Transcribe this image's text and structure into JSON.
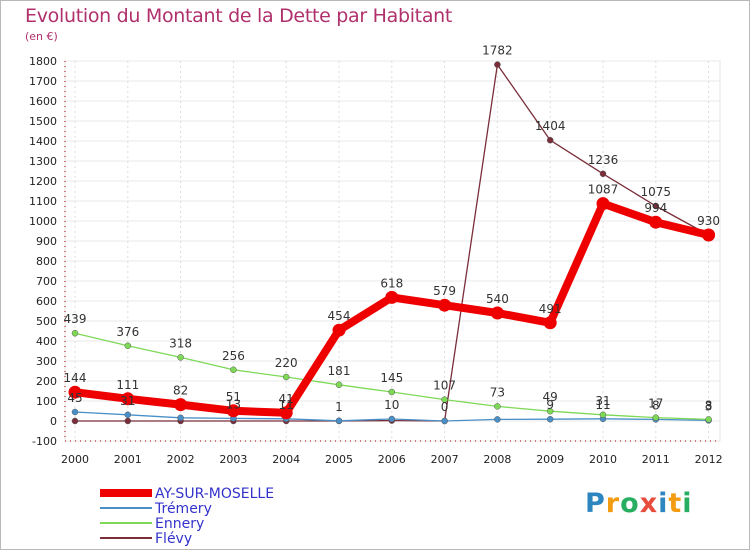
{
  "chart_data": {
    "type": "line",
    "title": "Evolution du Montant de la Dette par Habitant",
    "ylabel": "(en €)",
    "xlabel": "",
    "ylim": [
      -100,
      1800
    ],
    "yticks": [
      -100,
      0,
      100,
      200,
      300,
      400,
      500,
      600,
      700,
      800,
      900,
      1000,
      1100,
      1200,
      1300,
      1400,
      1500,
      1600,
      1700,
      1800
    ],
    "x": [
      "2000",
      "2001",
      "2002",
      "2003",
      "2004",
      "2005",
      "2006",
      "2007",
      "2008",
      "2009",
      "2010",
      "2011",
      "2012"
    ],
    "series": [
      {
        "name": "Flévy",
        "color": "#7a2e3a",
        "values": [
          0,
          0,
          0,
          0,
          0,
          0,
          2,
          0,
          1782,
          1404,
          1236,
          1075,
          930
        ],
        "labels": [
          "",
          "",
          "",
          "",
          "",
          "",
          "",
          "",
          "1782",
          "1404",
          "1236",
          "1075",
          ""
        ]
      },
      {
        "name": "Trémery",
        "color": "#4a90c8",
        "values": [
          45,
          31,
          16,
          13,
          11,
          1,
          10,
          0,
          8,
          9,
          11,
          8,
          3
        ],
        "labels": [
          "45",
          "31",
          "",
          "13",
          "11",
          "1",
          "10",
          "0",
          "",
          "9",
          "11",
          "8",
          "3"
        ]
      },
      {
        "name": "Ennery",
        "color": "#7ed957",
        "values": [
          439,
          376,
          318,
          256,
          220,
          181,
          145,
          107,
          73,
          49,
          31,
          17,
          8
        ],
        "labels": [
          "439",
          "376",
          "318",
          "256",
          "220",
          "181",
          "145",
          "107",
          "73",
          "49",
          "31",
          "17",
          "8"
        ]
      },
      {
        "name": "AY-SUR-MOSELLE",
        "color": "#ee0000",
        "values": [
          144,
          111,
          82,
          51,
          41,
          454,
          618,
          579,
          540,
          491,
          1087,
          994,
          930
        ],
        "labels": [
          "144",
          "111",
          "82",
          "51",
          "41",
          "454",
          "618",
          "579",
          "540",
          "491",
          "1087",
          "994",
          "930"
        ]
      }
    ]
  },
  "legend": {
    "items": [
      {
        "name": "AY-SUR-MOSELLE",
        "color": "#ee0000"
      },
      {
        "name": "Trémery",
        "color": "#4a90c8"
      },
      {
        "name": "Ennery",
        "color": "#7ed957"
      },
      {
        "name": "Flévy",
        "color": "#7a2e3a"
      }
    ]
  },
  "logo": {
    "text": "Proxiti",
    "letters": [
      {
        "char": "P",
        "color": "#2e86c1"
      },
      {
        "char": "r",
        "color": "#f39c12"
      },
      {
        "char": "o",
        "color": "#27ae60"
      },
      {
        "char": "x",
        "color": "#e74c3c"
      },
      {
        "char": "i",
        "color": "#2e86c1"
      },
      {
        "char": "t",
        "color": "#f39c12"
      },
      {
        "char": "i",
        "color": "#27ae60"
      }
    ]
  }
}
